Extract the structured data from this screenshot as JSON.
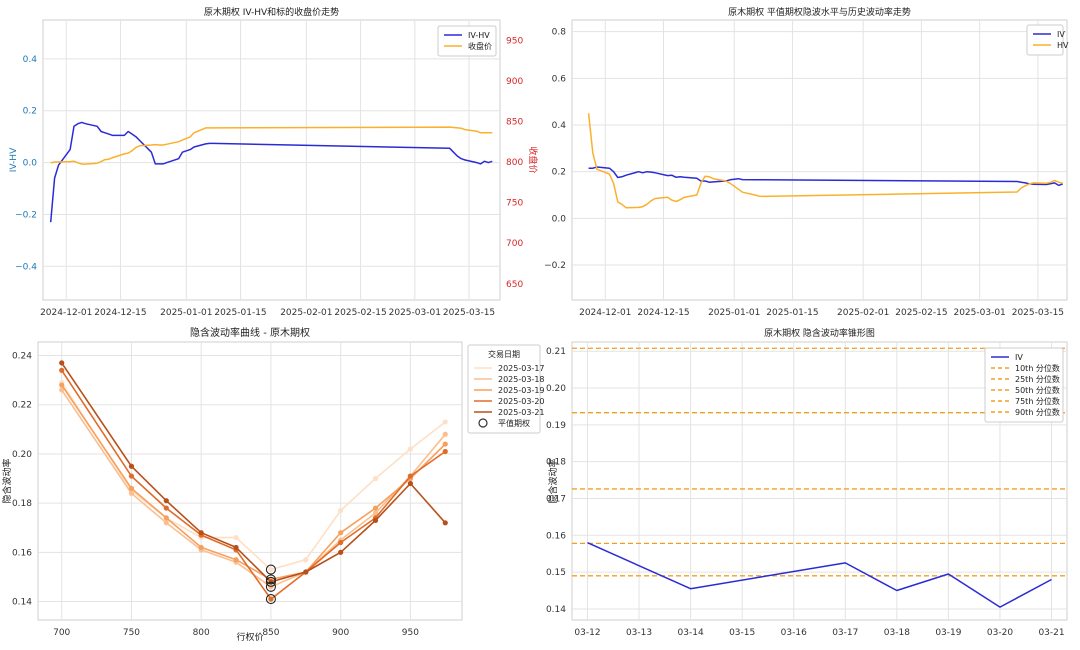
{
  "chart_data": [
    {
      "id": "p1",
      "type": "line",
      "title": "原木期权 IV-HV和标的收盘价走势",
      "ylabel": "IV-HV",
      "y2label": "收盘价",
      "xlim": [
        "2024-11-25",
        "2025-03-23"
      ],
      "ylim": [
        -0.53,
        0.55
      ],
      "y2lim": [
        630,
        975
      ],
      "xticks": [
        "2024-12-01",
        "2024-12-15",
        "2025-01-01",
        "2025-01-15",
        "2025-02-01",
        "2025-02-15",
        "2025-03-01",
        "2025-03-15"
      ],
      "yticks": [
        -0.4,
        -0.2,
        0.0,
        0.2,
        0.4
      ],
      "ytick_labels": [
        "−0.4",
        "−0.2",
        "0.0",
        "0.2",
        "0.4"
      ],
      "y2ticks": [
        650,
        700,
        750,
        800,
        850,
        900,
        950
      ],
      "ytick_color": "#1f77b4",
      "y2tick_color": "#d62728",
      "legend_position": "top-right",
      "grid": true,
      "series": [
        {
          "name": "IV-HV",
          "axis": "left",
          "color": "#2b2bd6",
          "x": [
            "2024-11-27",
            "2024-11-28",
            "2024-11-29",
            "2024-12-02",
            "2024-12-03",
            "2024-12-04",
            "2024-12-05",
            "2024-12-06",
            "2024-12-09",
            "2024-12-10",
            "2024-12-11",
            "2024-12-12",
            "2024-12-13",
            "2024-12-16",
            "2024-12-17",
            "2024-12-18",
            "2024-12-19",
            "2024-12-20",
            "2024-12-23",
            "2024-12-24",
            "2024-12-25",
            "2024-12-26",
            "2024-12-27",
            "2024-12-30",
            "2024-12-31",
            "2025-01-02",
            "2025-01-03",
            "2025-01-06",
            "2025-01-07",
            "2025-01-08",
            "2025-03-10",
            "2025-03-11",
            "2025-03-12",
            "2025-03-13",
            "2025-03-14",
            "2025-03-17",
            "2025-03-18",
            "2025-03-19",
            "2025-03-20",
            "2025-03-21"
          ],
          "y": [
            -0.23,
            -0.06,
            -0.01,
            0.05,
            0.14,
            0.15,
            0.155,
            0.15,
            0.14,
            0.12,
            0.115,
            0.11,
            0.105,
            0.105,
            0.12,
            0.11,
            0.1,
            0.085,
            0.04,
            -0.005,
            -0.005,
            -0.005,
            0.0,
            0.015,
            0.04,
            0.05,
            0.06,
            0.072,
            0.074,
            0.074,
            0.055,
            0.04,
            0.025,
            0.015,
            0.01,
            0.0,
            -0.005,
            0.005,
            0.0,
            0.005
          ]
        },
        {
          "name": "收盘价",
          "axis": "right",
          "color": "#fbb02d",
          "x": [
            "2024-11-27",
            "2024-11-28",
            "2024-11-29",
            "2024-12-02",
            "2024-12-03",
            "2024-12-04",
            "2024-12-05",
            "2024-12-06",
            "2024-12-09",
            "2024-12-10",
            "2024-12-11",
            "2024-12-12",
            "2024-12-13",
            "2024-12-16",
            "2024-12-17",
            "2024-12-18",
            "2024-12-19",
            "2024-12-20",
            "2024-12-23",
            "2024-12-24",
            "2024-12-25",
            "2024-12-26",
            "2024-12-27",
            "2024-12-30",
            "2024-12-31",
            "2025-01-02",
            "2025-01-03",
            "2025-01-06",
            "2025-01-07",
            "2025-01-08",
            "2025-03-10",
            "2025-03-11",
            "2025-03-12",
            "2025-03-13",
            "2025-03-14",
            "2025-03-17",
            "2025-03-18",
            "2025-03-19",
            "2025-03-20",
            "2025-03-21"
          ],
          "y": [
            799,
            800,
            800,
            800.5,
            801,
            799,
            797.5,
            797.5,
            798.5,
            800.5,
            803,
            803.5,
            805.5,
            810,
            811,
            814,
            818,
            820,
            821,
            821.5,
            821,
            821,
            822,
            825,
            827,
            831,
            836,
            842,
            842,
            842,
            843,
            842.5,
            842,
            841.5,
            840,
            838,
            836,
            836,
            836,
            836
          ]
        }
      ]
    },
    {
      "id": "p2",
      "type": "line",
      "title": "原木期权 平值期权隐波水平与历史波动率走势",
      "xlim": [
        "2024-11-23",
        "2025-03-22"
      ],
      "ylim": [
        -0.35,
        0.85
      ],
      "xticks": [
        "2024-12-01",
        "2024-12-15",
        "2025-01-01",
        "2025-01-15",
        "2025-02-01",
        "2025-02-15",
        "2025-03-01",
        "2025-03-15"
      ],
      "yticks": [
        -0.2,
        0.0,
        0.2,
        0.4,
        0.6,
        0.8
      ],
      "ytick_labels": [
        "−0.2",
        "0.0",
        "0.2",
        "0.4",
        "0.6",
        "0.8"
      ],
      "legend_position": "top-right",
      "grid": true,
      "series": [
        {
          "name": "IV",
          "color": "#2b2bd6",
          "x": [
            "2024-11-27",
            "2024-11-28",
            "2024-11-29",
            "2024-12-02",
            "2024-12-03",
            "2024-12-04",
            "2024-12-05",
            "2024-12-06",
            "2024-12-09",
            "2024-12-10",
            "2024-12-11",
            "2024-12-12",
            "2024-12-13",
            "2024-12-16",
            "2024-12-17",
            "2024-12-18",
            "2024-12-19",
            "2024-12-20",
            "2024-12-23",
            "2024-12-24",
            "2024-12-25",
            "2024-12-26",
            "2024-12-27",
            "2024-12-30",
            "2024-12-31",
            "2025-01-02",
            "2025-01-03",
            "2025-01-06",
            "2025-01-07",
            "2025-01-08",
            "2025-03-10",
            "2025-03-11",
            "2025-03-12",
            "2025-03-13",
            "2025-03-14",
            "2025-03-17",
            "2025-03-18",
            "2025-03-19",
            "2025-03-20",
            "2025-03-21"
          ],
          "y": [
            0.215,
            0.215,
            0.22,
            0.215,
            0.2,
            0.175,
            0.178,
            0.185,
            0.2,
            0.195,
            0.2,
            0.198,
            0.195,
            0.183,
            0.185,
            0.176,
            0.178,
            0.176,
            0.172,
            0.16,
            0.16,
            0.155,
            0.156,
            0.16,
            0.165,
            0.17,
            0.166,
            0.165,
            0.165,
            0.165,
            0.158,
            0.155,
            0.152,
            0.148,
            0.146,
            0.145,
            0.148,
            0.152,
            0.141,
            0.148
          ]
        },
        {
          "name": "HV",
          "color": "#fbb02d",
          "x": [
            "2024-11-27",
            "2024-11-28",
            "2024-11-29",
            "2024-12-02",
            "2024-12-03",
            "2024-12-04",
            "2024-12-05",
            "2024-12-06",
            "2024-12-09",
            "2024-12-10",
            "2024-12-11",
            "2024-12-12",
            "2024-12-13",
            "2024-12-16",
            "2024-12-17",
            "2024-12-18",
            "2024-12-19",
            "2024-12-20",
            "2024-12-23",
            "2024-12-24",
            "2024-12-25",
            "2024-12-26",
            "2024-12-27",
            "2024-12-30",
            "2024-12-31",
            "2025-01-02",
            "2025-01-03",
            "2025-01-06",
            "2025-01-07",
            "2025-01-08",
            "2025-03-10",
            "2025-03-11",
            "2025-03-12",
            "2025-03-13",
            "2025-03-14",
            "2025-03-17",
            "2025-03-18",
            "2025-03-19",
            "2025-03-20",
            "2025-03-21"
          ],
          "y": [
            0.45,
            0.28,
            0.21,
            0.19,
            0.15,
            0.07,
            0.06,
            0.045,
            0.047,
            0.05,
            0.06,
            0.075,
            0.085,
            0.09,
            0.078,
            0.072,
            0.08,
            0.09,
            0.1,
            0.15,
            0.18,
            0.178,
            0.17,
            0.16,
            0.15,
            0.125,
            0.112,
            0.1,
            0.095,
            0.094,
            0.113,
            0.13,
            0.14,
            0.148,
            0.152,
            0.15,
            0.154,
            0.162,
            0.155,
            0.15
          ]
        }
      ]
    },
    {
      "id": "p3",
      "type": "line",
      "title": "隐含波动率曲线 - 原木期权",
      "xlabel": "行权价",
      "ylabel": "隐含波动率",
      "xlim": [
        683,
        987
      ],
      "ylim": [
        0.1325,
        0.2455
      ],
      "xticks": [
        700,
        750,
        800,
        850,
        900,
        950
      ],
      "yticks": [
        0.14,
        0.16,
        0.18,
        0.2,
        0.22,
        0.24
      ],
      "ytick_labels": [
        "0.14",
        "0.16",
        "0.18",
        "0.20",
        "0.22",
        "0.24"
      ],
      "legend_title": "交易日期",
      "legend_position": "top-right",
      "grid": true,
      "x": [
        700,
        750,
        775,
        800,
        825,
        850,
        875,
        900,
        925,
        950,
        975
      ],
      "series": [
        {
          "name": "2025-03-17",
          "color": "#fde0c5",
          "values": [
            0.229,
            0.185,
            0.174,
            0.166,
            0.166,
            0.153,
            0.157,
            0.177,
            0.19,
            0.202,
            0.213
          ]
        },
        {
          "name": "2025-03-18",
          "color": "#fbbf8f",
          "values": [
            0.226,
            0.184,
            0.172,
            0.161,
            0.156,
            0.146,
            0.152,
            0.165,
            0.176,
            0.191,
            0.208
          ]
        },
        {
          "name": "2025-03-19",
          "color": "#f6a05f",
          "values": [
            0.228,
            0.186,
            0.174,
            0.162,
            0.157,
            0.149,
            0.152,
            0.168,
            0.178,
            0.19,
            0.204
          ]
        },
        {
          "name": "2025-03-20",
          "color": "#e06c2a",
          "values": [
            0.234,
            0.191,
            0.178,
            0.167,
            0.161,
            0.141,
            0.152,
            0.164,
            0.174,
            0.191,
            0.201
          ]
        },
        {
          "name": "2025-03-21",
          "color": "#b8501a",
          "values": [
            0.237,
            0.195,
            0.181,
            0.168,
            0.162,
            0.148,
            0.152,
            0.16,
            0.173,
            0.188,
            0.172
          ]
        }
      ],
      "atm_label": "平值期权",
      "atm_strike": 850,
      "atm_values": [
        0.153,
        0.146,
        0.149,
        0.141,
        0.148
      ]
    },
    {
      "id": "p4",
      "type": "line",
      "title": "原木期权 隐含波动率锥形图",
      "ylabel": "隐含波动率",
      "xlim": [
        -0.3,
        9.3
      ],
      "ylim": [
        0.137,
        0.2125
      ],
      "categories": [
        "03-12",
        "03-13",
        "03-14",
        "03-15",
        "03-16",
        "03-17",
        "03-18",
        "03-19",
        "03-20",
        "03-21"
      ],
      "yticks": [
        0.14,
        0.15,
        0.16,
        0.17,
        0.18,
        0.19,
        0.2,
        0.21
      ],
      "ytick_labels": [
        "0.14",
        "0.15",
        "0.16",
        "0.17",
        "0.18",
        "0.19",
        "0.20",
        "0.21"
      ],
      "legend_position": "top-right",
      "grid": true,
      "series": [
        {
          "name": "IV",
          "color": "#2b2bd6",
          "x": [
            0,
            2,
            5,
            6,
            7,
            8,
            9
          ],
          "values": [
            0.158,
            0.1455,
            0.1525,
            0.145,
            0.1495,
            0.1405,
            0.148
          ]
        }
      ],
      "percentiles": [
        {
          "name": "10th 分位数",
          "value": 0.149
        },
        {
          "name": "25th 分位数",
          "value": 0.1578
        },
        {
          "name": "50th 分位数",
          "value": 0.1726
        },
        {
          "name": "75th 分位数",
          "value": 0.1933
        },
        {
          "name": "90th 分位数",
          "value": 0.2108
        }
      ],
      "percentile_color": "#f0a020"
    }
  ]
}
